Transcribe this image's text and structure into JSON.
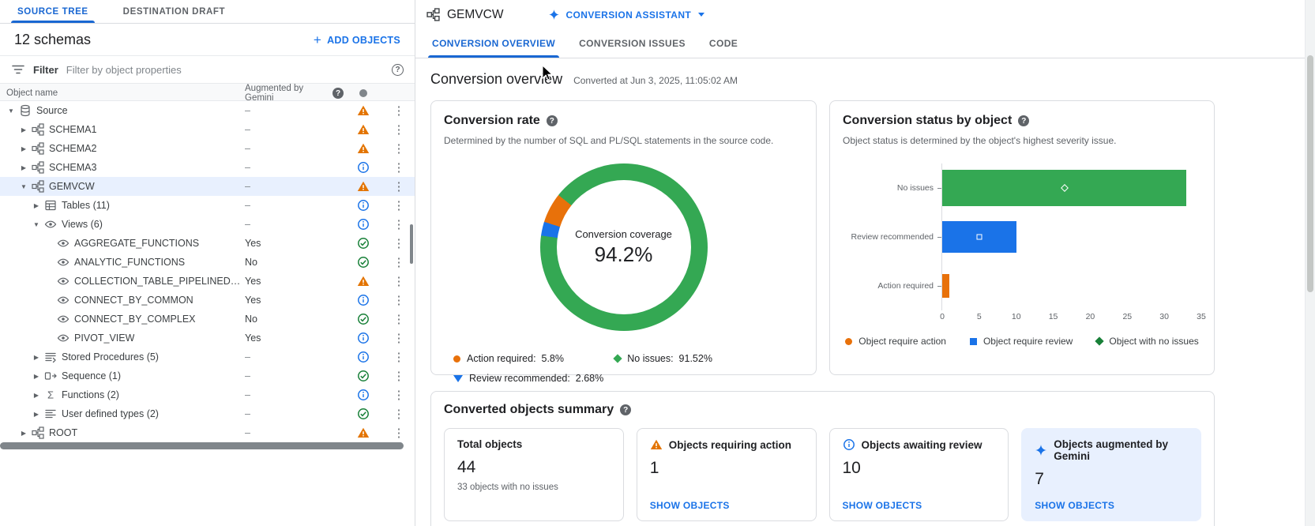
{
  "left_panel": {
    "tabs": [
      {
        "label": "SOURCE TREE",
        "active": true
      },
      {
        "label": "DESTINATION DRAFT",
        "active": false
      }
    ],
    "schemas_count": "12 schemas",
    "add_objects_label": "ADD OBJECTS",
    "filter": {
      "label": "Filter",
      "placeholder": "Filter by object properties"
    },
    "columns": {
      "name": "Object name",
      "augmented": "Augmented by Gemini"
    },
    "tree": [
      {
        "label": "Source",
        "icon": "database",
        "level": 0,
        "expand": "open",
        "augmented": "–",
        "status": "warning"
      },
      {
        "label": "SCHEMA1",
        "icon": "schema",
        "level": 1,
        "expand": "closed",
        "augmented": "–",
        "status": "warning"
      },
      {
        "label": "SCHEMA2",
        "icon": "schema",
        "level": 1,
        "expand": "closed",
        "augmented": "–",
        "status": "warning"
      },
      {
        "label": "SCHEMA3",
        "icon": "schema",
        "level": 1,
        "expand": "closed",
        "augmented": "–",
        "status": "info"
      },
      {
        "label": "GEMVCW",
        "icon": "schema",
        "level": 1,
        "expand": "open",
        "augmented": "–",
        "status": "warning",
        "selected": true
      },
      {
        "label": "Tables (11)",
        "icon": "table",
        "level": 2,
        "expand": "closed",
        "augmented": "–",
        "status": "info"
      },
      {
        "label": "Views (6)",
        "icon": "view",
        "level": 2,
        "expand": "open",
        "augmented": "–",
        "status": "info"
      },
      {
        "label": "AGGREGATE_FUNCTIONS",
        "icon": "view",
        "level": 3,
        "expand": "none",
        "augmented": "Yes",
        "status": "check"
      },
      {
        "label": "ANALYTIC_FUNCTIONS",
        "icon": "view",
        "level": 3,
        "expand": "none",
        "augmented": "No",
        "status": "check"
      },
      {
        "label": "COLLECTION_TABLE_PIPELINED_VIEW",
        "icon": "view",
        "level": 3,
        "expand": "none",
        "augmented": "Yes",
        "status": "warning"
      },
      {
        "label": "CONNECT_BY_COMMON",
        "icon": "view",
        "level": 3,
        "expand": "none",
        "augmented": "Yes",
        "status": "info"
      },
      {
        "label": "CONNECT_BY_COMPLEX",
        "icon": "view",
        "level": 3,
        "expand": "none",
        "augmented": "No",
        "status": "check"
      },
      {
        "label": "PIVOT_VIEW",
        "icon": "view",
        "level": 3,
        "expand": "none",
        "augmented": "Yes",
        "status": "info"
      },
      {
        "label": "Stored Procedures (5)",
        "icon": "procedure",
        "level": 2,
        "expand": "closed",
        "augmented": "–",
        "status": "info"
      },
      {
        "label": "Sequence (1)",
        "icon": "sequence",
        "level": 2,
        "expand": "closed",
        "augmented": "–",
        "status": "check"
      },
      {
        "label": "Functions (2)",
        "icon": "function",
        "level": 2,
        "expand": "closed",
        "augmented": "–",
        "status": "info"
      },
      {
        "label": "User defined types (2)",
        "icon": "udt",
        "level": 2,
        "expand": "closed",
        "augmented": "–",
        "status": "check"
      },
      {
        "label": "ROOT",
        "icon": "schema",
        "level": 1,
        "expand": "closed",
        "augmented": "–",
        "status": "warning"
      }
    ]
  },
  "header": {
    "title": "GEMVCW",
    "assistant_label": "CONVERSION ASSISTANT"
  },
  "right_tabs": [
    {
      "label": "CONVERSION OVERVIEW",
      "active": true
    },
    {
      "label": "CONVERSION ISSUES",
      "active": false
    },
    {
      "label": "CODE",
      "active": false
    }
  ],
  "overview": {
    "title": "Conversion overview",
    "converted_at": "Converted at Jun 3, 2025, 11:05:02 AM"
  },
  "chart_data": [
    {
      "type": "donut",
      "title": "Conversion rate",
      "subtitle": "Determined by the number of SQL and PL/SQL statements in the source code.",
      "center_label": "Conversion coverage",
      "center_value": "94.2%",
      "slices": [
        {
          "label": "No issues",
          "value": 91.52,
          "color": "#34a853",
          "marker": "diamond"
        },
        {
          "label": "Review recommended",
          "value": 2.68,
          "color": "#1a73e8",
          "marker": "triangle-down"
        },
        {
          "label": "Action required",
          "value": 5.8,
          "color": "#e8710a",
          "marker": "circle"
        }
      ],
      "legend_order": [
        "Action required",
        "No issues",
        "Review recommended"
      ],
      "value_suffix": "%"
    },
    {
      "type": "bar",
      "orientation": "horizontal",
      "title": "Conversion status by object",
      "subtitle": "Object status is determined by the object's highest severity issue.",
      "categories": [
        "No issues",
        "Review recommended",
        "Action required"
      ],
      "values": [
        33,
        10,
        1
      ],
      "colors": [
        "#34a853",
        "#1a73e8",
        "#e8710a"
      ],
      "bar_markers": [
        {
          "index": 0,
          "shape": "diamond"
        },
        {
          "index": 1,
          "shape": "square"
        }
      ],
      "xlim": [
        0,
        35
      ],
      "xticks": [
        0,
        5,
        10,
        15,
        20,
        25,
        30,
        35
      ],
      "legend": [
        {
          "label": "Object require action",
          "marker": "circle",
          "color": "#e8710a"
        },
        {
          "label": "Object require review",
          "marker": "square",
          "color": "#1a73e8"
        },
        {
          "label": "Object with no issues",
          "marker": "diamond",
          "color": "#188038"
        }
      ]
    }
  ],
  "summary_card": {
    "title": "Converted objects summary",
    "tiles": [
      {
        "title": "Total objects",
        "value": "44",
        "subtext": "33 objects with no issues"
      },
      {
        "icon": "warning",
        "title": "Objects requiring action",
        "value": "1",
        "link": "SHOW OBJECTS"
      },
      {
        "icon": "info",
        "title": "Objects awaiting review",
        "value": "10",
        "link": "SHOW OBJECTS"
      },
      {
        "icon": "sparkle",
        "title": "Objects augmented by Gemini",
        "value": "7",
        "link": "SHOW OBJECTS",
        "highlight": true
      }
    ]
  }
}
